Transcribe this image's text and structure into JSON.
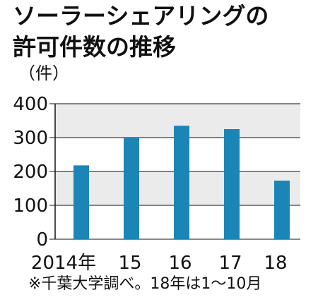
{
  "title_line1": "ソーラーシェアリングの",
  "title_line2": "許可件数の推移",
  "unit": "（件）",
  "note": "※千葉大学調べ。18年は1～10月",
  "colors": {
    "bar": "#1b86b6",
    "band": "#ebebeb",
    "axis": "#111111"
  },
  "chart_data": {
    "type": "bar",
    "categories": [
      "2014年",
      "15",
      "16",
      "17",
      "18"
    ],
    "values": [
      218,
      300,
      335,
      325,
      173
    ],
    "ylim": [
      0,
      400
    ],
    "yticks": [
      0,
      100,
      200,
      300,
      400
    ],
    "ylabel": "（件）",
    "grid": "alternating horizontal bands",
    "legend": "none"
  }
}
